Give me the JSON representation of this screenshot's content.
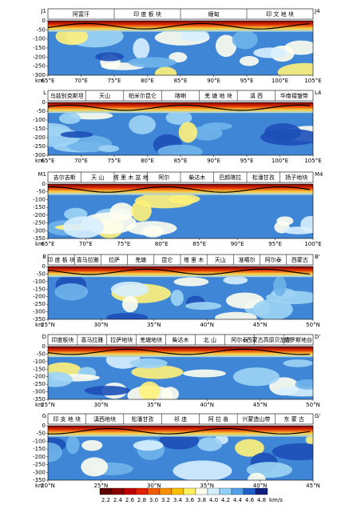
{
  "panels": [
    {
      "left_label": "J1",
      "right_label": "J4",
      "blocks": [
        "阿富汗",
        "印 度 板 块",
        "缅甸",
        "印 文 地 块"
      ],
      "yticks": [
        "0",
        "-50",
        "-100",
        "-150",
        "-200",
        "-250",
        "-300"
      ],
      "x_unit": "km",
      "xticks": [
        "65°E",
        "70°E",
        "75°E",
        "80°E",
        "85°E",
        "90°E",
        "95°E",
        "100°E",
        "105°E"
      ]
    },
    {
      "left_label": "L",
      "right_label": "L4",
      "blocks": [
        "乌兹别克斯坦",
        "天山",
        "帕米尔昆仑",
        "喀喇",
        "羌 塘 地 块",
        "滇 西",
        "华南褶皱带"
      ],
      "yticks": [
        "0",
        "-50",
        "-100",
        "-150",
        "-200",
        "-250",
        "-300"
      ],
      "x_unit": "km",
      "xticks": [
        "65°E",
        "70°E",
        "75°E",
        "80°E",
        "85°E",
        "90°E",
        "95°E",
        "100°E",
        "105°E"
      ]
    },
    {
      "left_label": "M1",
      "right_label": "M4",
      "blocks": [
        "吉尔吉斯",
        "天 山",
        "塔 里 木 盆 地",
        "阿尔",
        "柴达木",
        "巴颜喀拉",
        "松潘甘孜",
        "扬子地块"
      ],
      "yticks": [
        "0",
        "-50",
        "-100",
        "-150",
        "-200",
        "-250",
        "-300",
        "-350"
      ],
      "x_unit": "km",
      "xticks": [
        "65°E",
        "70°E",
        "75°E",
        "80°E",
        "85°E",
        "90°E",
        "95°E",
        "100°E"
      ]
    },
    {
      "left_label": "B",
      "right_label": "B'",
      "blocks": [
        "印 度 板 块",
        "喜马拉雅",
        "拉萨",
        "羌塘",
        "昆仑",
        "塔 里 木",
        "天山",
        "准噶尔",
        "阿尔泰",
        "西蒙古"
      ],
      "yticks": [
        "0",
        "-50",
        "-100",
        "-150",
        "-200",
        "-250",
        "-300",
        "-350"
      ],
      "x_unit": "km",
      "xticks": [
        "25°N",
        "30°N",
        "35°N",
        "40°N",
        "45°N",
        "50°N"
      ]
    },
    {
      "left_label": "D",
      "right_label": "D'",
      "blocks": [
        "印度板块",
        "喜马拉雅",
        "拉萨地块",
        "羌塘地块",
        "柴达木",
        "北 山",
        "阿尔泰",
        "西蒙古高原贝加尔",
        "俄罗斯地台"
      ],
      "yticks": [
        "0",
        "-50",
        "-100",
        "-150",
        "-200",
        "-250",
        "-300",
        "-350"
      ],
      "x_unit": "km",
      "xticks": [
        "25°N",
        "30°N",
        "35°N",
        "40°N",
        "45°N",
        "50°N"
      ]
    },
    {
      "left_label": "G",
      "right_label": "G'",
      "blocks": [
        "印 支 地 块",
        "滇西地块",
        "松潘甘孜",
        "祁 连",
        "阿 拉 善",
        "兴蒙造山带",
        "东 蒙 古"
      ],
      "yticks": [
        "0",
        "-50",
        "-100",
        "-150",
        "-200",
        "-250",
        "-300",
        "-350"
      ],
      "x_unit": "km",
      "xticks": [
        "20°N",
        "25°N",
        "30°N",
        "35°N",
        "40°N",
        "45°N"
      ]
    }
  ],
  "colorbar": {
    "ticks": [
      "2.2",
      "2.4",
      "2.6",
      "2.8",
      "3.0",
      "3.2",
      "3.4",
      "3.6",
      "3.8",
      "4.0",
      "4.2",
      "4.4",
      "4.6",
      "4.8"
    ],
    "unit": "km/s"
  }
}
